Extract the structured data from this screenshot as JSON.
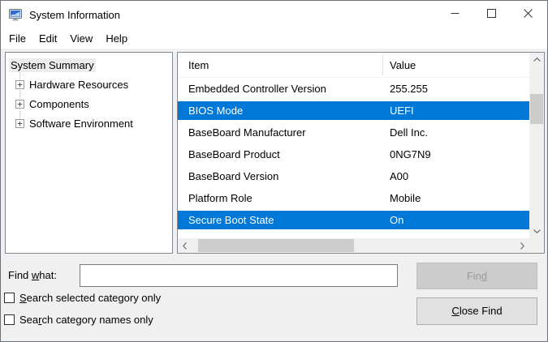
{
  "window": {
    "title": "System Information"
  },
  "menu": {
    "items": [
      "File",
      "Edit",
      "View",
      "Help"
    ]
  },
  "tree": {
    "root": "System Summary",
    "items": [
      "Hardware Resources",
      "Components",
      "Software Environment"
    ],
    "expander_glyph": "+"
  },
  "list": {
    "columns": [
      "Item",
      "Value"
    ],
    "rows": [
      {
        "item": "Embedded Controller Version",
        "value": "255.255",
        "selected": false
      },
      {
        "item": "BIOS Mode",
        "value": "UEFI",
        "selected": true
      },
      {
        "item": "BaseBoard Manufacturer",
        "value": "Dell Inc.",
        "selected": false
      },
      {
        "item": "BaseBoard Product",
        "value": "0NG7N9",
        "selected": false
      },
      {
        "item": "BaseBoard Version",
        "value": "A00",
        "selected": false
      },
      {
        "item": "Platform Role",
        "value": "Mobile",
        "selected": false
      },
      {
        "item": "Secure Boot State",
        "value": "On",
        "selected": true
      }
    ]
  },
  "find": {
    "label_parts": [
      [
        "Find ",
        false
      ],
      [
        "w",
        true
      ],
      [
        "hat:",
        false
      ]
    ],
    "input_value": "",
    "find_button_parts": [
      [
        "Fin",
        false
      ],
      [
        "d",
        true
      ]
    ],
    "close_button_parts": [
      [
        "C",
        true
      ],
      [
        "lose Find",
        false
      ]
    ],
    "checkboxes": [
      {
        "checked": false,
        "label_parts": [
          [
            "S",
            true
          ],
          [
            "earch selected category only",
            false
          ]
        ]
      },
      {
        "checked": false,
        "label_parts": [
          [
            "Sea",
            false
          ],
          [
            "r",
            true
          ],
          [
            "ch category names only",
            false
          ]
        ]
      }
    ]
  },
  "colors": {
    "selection_bg": "#0078d7",
    "selection_text": "#ffffff",
    "window_bg": "#f0f0f0",
    "titlebar_bg": "#ffffff",
    "scrollbar_thumb": "#cdcdcd"
  }
}
